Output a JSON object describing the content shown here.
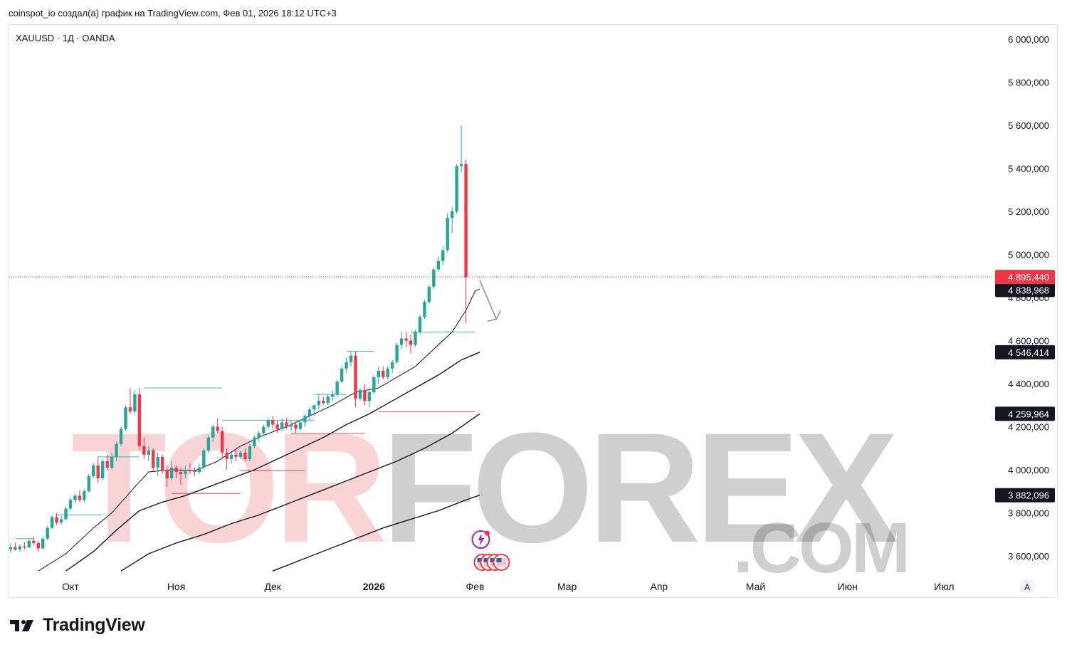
{
  "header": {
    "caption": "coinspot_io создал(а) график на TradingView.com, Фев 01, 2026 18:12 UTC+3"
  },
  "symbol_label": "XAUUSD · 1Д · OANDA",
  "footer": {
    "logo_icon": "tradingview-logo-icon",
    "brand": "TradingView"
  },
  "watermark": {
    "part_a": "TOR",
    "part_b": "FOREX",
    "domain": ".COM"
  },
  "auto_scale_button": "A",
  "colors": {
    "up": "#26a69a",
    "down": "#f23645",
    "ma": "#131722",
    "current_price_label": "#f23645",
    "ma_label": "#131722"
  },
  "chart_data": {
    "type": "candlestick",
    "symbol": "XAUUSD",
    "timeframe": "1Д",
    "source": "OANDA",
    "ylim": [
      3500,
      6100
    ],
    "y_ticks": [
      {
        "value": 6000,
        "label": "6 000,000"
      },
      {
        "value": 5800,
        "label": "5 800,000"
      },
      {
        "value": 5600,
        "label": "5 600,000"
      },
      {
        "value": 5400,
        "label": "5 400,000"
      },
      {
        "value": 5200,
        "label": "5 200,000"
      },
      {
        "value": 5000,
        "label": "5 000,000"
      },
      {
        "value": 4800,
        "label": "4 800,000"
      },
      {
        "value": 4600,
        "label": "4 600,000"
      },
      {
        "value": 4400,
        "label": "4 400,000"
      },
      {
        "value": 4200,
        "label": "4 200,000"
      },
      {
        "value": 4000,
        "label": "4 000,000"
      },
      {
        "value": 3800,
        "label": "3 800,000"
      },
      {
        "value": 3600,
        "label": "3 600,000"
      }
    ],
    "x_ticks": [
      {
        "index": 13,
        "label": "Окт",
        "bold": false
      },
      {
        "index": 36,
        "label": "Ноя",
        "bold": false
      },
      {
        "index": 57,
        "label": "Дек",
        "bold": false
      },
      {
        "index": 79,
        "label": "2026",
        "bold": true
      },
      {
        "index": 101,
        "label": "Фев",
        "bold": false
      },
      {
        "index": 121,
        "label": "Мар",
        "bold": false
      },
      {
        "index": 141,
        "label": "Апр",
        "bold": false
      },
      {
        "index": 162,
        "label": "Май",
        "bold": false
      },
      {
        "index": 182,
        "label": "Июн",
        "bold": false
      },
      {
        "index": 203,
        "label": "Июл",
        "bold": false
      }
    ],
    "candles": [
      {
        "o": 3630,
        "h": 3660,
        "l": 3615,
        "c": 3640
      },
      {
        "o": 3640,
        "h": 3660,
        "l": 3625,
        "c": 3630
      },
      {
        "o": 3630,
        "h": 3655,
        "l": 3620,
        "c": 3645
      },
      {
        "o": 3645,
        "h": 3665,
        "l": 3630,
        "c": 3640
      },
      {
        "o": 3640,
        "h": 3680,
        "l": 3635,
        "c": 3670
      },
      {
        "o": 3670,
        "h": 3690,
        "l": 3650,
        "c": 3660
      },
      {
        "o": 3660,
        "h": 3670,
        "l": 3620,
        "c": 3635
      },
      {
        "o": 3635,
        "h": 3690,
        "l": 3630,
        "c": 3680
      },
      {
        "o": 3680,
        "h": 3740,
        "l": 3675,
        "c": 3730
      },
      {
        "o": 3730,
        "h": 3790,
        "l": 3725,
        "c": 3780
      },
      {
        "o": 3780,
        "h": 3800,
        "l": 3745,
        "c": 3755
      },
      {
        "o": 3755,
        "h": 3785,
        "l": 3745,
        "c": 3770
      },
      {
        "o": 3770,
        "h": 3830,
        "l": 3765,
        "c": 3820
      },
      {
        "o": 3820,
        "h": 3870,
        "l": 3810,
        "c": 3860
      },
      {
        "o": 3860,
        "h": 3890,
        "l": 3845,
        "c": 3880
      },
      {
        "o": 3880,
        "h": 3905,
        "l": 3850,
        "c": 3860
      },
      {
        "o": 3860,
        "h": 3910,
        "l": 3850,
        "c": 3900
      },
      {
        "o": 3900,
        "h": 3980,
        "l": 3895,
        "c": 3970
      },
      {
        "o": 3970,
        "h": 4030,
        "l": 3960,
        "c": 4020
      },
      {
        "o": 4020,
        "h": 4060,
        "l": 3940,
        "c": 3960
      },
      {
        "o": 3960,
        "h": 4050,
        "l": 3950,
        "c": 4040
      },
      {
        "o": 4040,
        "h": 4070,
        "l": 4000,
        "c": 4010
      },
      {
        "o": 4010,
        "h": 4080,
        "l": 4000,
        "c": 4060
      },
      {
        "o": 4060,
        "h": 4130,
        "l": 4040,
        "c": 4120
      },
      {
        "o": 4120,
        "h": 4200,
        "l": 4110,
        "c": 4190
      },
      {
        "o": 4190,
        "h": 4300,
        "l": 4180,
        "c": 4290
      },
      {
        "o": 4290,
        "h": 4380,
        "l": 4260,
        "c": 4270
      },
      {
        "o": 4270,
        "h": 4370,
        "l": 4260,
        "c": 4350
      },
      {
        "o": 4350,
        "h": 4380,
        "l": 4090,
        "c": 4110
      },
      {
        "o": 4110,
        "h": 4150,
        "l": 4050,
        "c": 4070
      },
      {
        "o": 4070,
        "h": 4110,
        "l": 4040,
        "c": 4090
      },
      {
        "o": 4090,
        "h": 4100,
        "l": 3990,
        "c": 4010
      },
      {
        "o": 4010,
        "h": 4080,
        "l": 3970,
        "c": 4060
      },
      {
        "o": 4060,
        "h": 4070,
        "l": 3980,
        "c": 4000
      },
      {
        "o": 4000,
        "h": 4020,
        "l": 3920,
        "c": 3960
      },
      {
        "o": 3960,
        "h": 4040,
        "l": 3950,
        "c": 4010
      },
      {
        "o": 4010,
        "h": 4020,
        "l": 3960,
        "c": 3990
      },
      {
        "o": 3990,
        "h": 4010,
        "l": 3930,
        "c": 3980
      },
      {
        "o": 3980,
        "h": 4020,
        "l": 3960,
        "c": 4000
      },
      {
        "o": 4000,
        "h": 4030,
        "l": 3980,
        "c": 3995
      },
      {
        "o": 3995,
        "h": 4010,
        "l": 3970,
        "c": 3990
      },
      {
        "o": 3990,
        "h": 4030,
        "l": 3980,
        "c": 4010
      },
      {
        "o": 4010,
        "h": 4100,
        "l": 4000,
        "c": 4090
      },
      {
        "o": 4090,
        "h": 4160,
        "l": 4080,
        "c": 4150
      },
      {
        "o": 4150,
        "h": 4210,
        "l": 4130,
        "c": 4200
      },
      {
        "o": 4200,
        "h": 4240,
        "l": 4170,
        "c": 4180
      },
      {
        "o": 4180,
        "h": 4200,
        "l": 4050,
        "c": 4080
      },
      {
        "o": 4080,
        "h": 4100,
        "l": 4000,
        "c": 4050
      },
      {
        "o": 4050,
        "h": 4080,
        "l": 4030,
        "c": 4070
      },
      {
        "o": 4070,
        "h": 4100,
        "l": 4040,
        "c": 4060
      },
      {
        "o": 4060,
        "h": 4090,
        "l": 4050,
        "c": 4080
      },
      {
        "o": 4080,
        "h": 4100,
        "l": 4040,
        "c": 4050
      },
      {
        "o": 4050,
        "h": 4120,
        "l": 4040,
        "c": 4110
      },
      {
        "o": 4110,
        "h": 4160,
        "l": 4100,
        "c": 4150
      },
      {
        "o": 4150,
        "h": 4180,
        "l": 4130,
        "c": 4170
      },
      {
        "o": 4170,
        "h": 4210,
        "l": 4160,
        "c": 4200
      },
      {
        "o": 4200,
        "h": 4240,
        "l": 4190,
        "c": 4230
      },
      {
        "o": 4230,
        "h": 4250,
        "l": 4190,
        "c": 4210
      },
      {
        "o": 4210,
        "h": 4230,
        "l": 4170,
        "c": 4190
      },
      {
        "o": 4190,
        "h": 4240,
        "l": 4180,
        "c": 4220
      },
      {
        "o": 4220,
        "h": 4240,
        "l": 4190,
        "c": 4200
      },
      {
        "o": 4200,
        "h": 4230,
        "l": 4180,
        "c": 4210
      },
      {
        "o": 4210,
        "h": 4220,
        "l": 4170,
        "c": 4190
      },
      {
        "o": 4190,
        "h": 4230,
        "l": 4180,
        "c": 4220
      },
      {
        "o": 4220,
        "h": 4260,
        "l": 4200,
        "c": 4250
      },
      {
        "o": 4250,
        "h": 4290,
        "l": 4230,
        "c": 4280
      },
      {
        "o": 4280,
        "h": 4300,
        "l": 4250,
        "c": 4300
      },
      {
        "o": 4300,
        "h": 4350,
        "l": 4280,
        "c": 4320
      },
      {
        "o": 4320,
        "h": 4340,
        "l": 4300,
        "c": 4310
      },
      {
        "o": 4310,
        "h": 4350,
        "l": 4300,
        "c": 4340
      },
      {
        "o": 4340,
        "h": 4370,
        "l": 4320,
        "c": 4350
      },
      {
        "o": 4350,
        "h": 4420,
        "l": 4340,
        "c": 4410
      },
      {
        "o": 4410,
        "h": 4480,
        "l": 4400,
        "c": 4470
      },
      {
        "o": 4470,
        "h": 4520,
        "l": 4450,
        "c": 4500
      },
      {
        "o": 4500,
        "h": 4550,
        "l": 4480,
        "c": 4530
      },
      {
        "o": 4530,
        "h": 4550,
        "l": 4290,
        "c": 4330
      },
      {
        "o": 4330,
        "h": 4380,
        "l": 4320,
        "c": 4370
      },
      {
        "o": 4370,
        "h": 4400,
        "l": 4300,
        "c": 4320
      },
      {
        "o": 4320,
        "h": 4380,
        "l": 4290,
        "c": 4360
      },
      {
        "o": 4360,
        "h": 4440,
        "l": 4350,
        "c": 4430
      },
      {
        "o": 4430,
        "h": 4480,
        "l": 4400,
        "c": 4460
      },
      {
        "o": 4460,
        "h": 4480,
        "l": 4420,
        "c": 4430
      },
      {
        "o": 4430,
        "h": 4480,
        "l": 4420,
        "c": 4470
      },
      {
        "o": 4470,
        "h": 4510,
        "l": 4450,
        "c": 4500
      },
      {
        "o": 4500,
        "h": 4590,
        "l": 4490,
        "c": 4580
      },
      {
        "o": 4580,
        "h": 4640,
        "l": 4560,
        "c": 4610
      },
      {
        "o": 4610,
        "h": 4640,
        "l": 4570,
        "c": 4600
      },
      {
        "o": 4600,
        "h": 4630,
        "l": 4540,
        "c": 4580
      },
      {
        "o": 4580,
        "h": 4650,
        "l": 4570,
        "c": 4640
      },
      {
        "o": 4640,
        "h": 4720,
        "l": 4630,
        "c": 4710
      },
      {
        "o": 4710,
        "h": 4790,
        "l": 4700,
        "c": 4780
      },
      {
        "o": 4780,
        "h": 4860,
        "l": 4770,
        "c": 4850
      },
      {
        "o": 4850,
        "h": 4940,
        "l": 4840,
        "c": 4930
      },
      {
        "o": 4930,
        "h": 4990,
        "l": 4920,
        "c": 4970
      },
      {
        "o": 4970,
        "h": 5040,
        "l": 4950,
        "c": 5020
      },
      {
        "o": 5020,
        "h": 5190,
        "l": 5010,
        "c": 5170
      },
      {
        "o": 5170,
        "h": 5220,
        "l": 5100,
        "c": 5200
      },
      {
        "o": 5200,
        "h": 5420,
        "l": 5190,
        "c": 5410
      },
      {
        "o": 5410,
        "h": 5600,
        "l": 5380,
        "c": 5420
      },
      {
        "o": 5420,
        "h": 5440,
        "l": 4680,
        "c": 4895
      }
    ],
    "moving_averages": [
      {
        "name": "MA1",
        "values": [
          [
            6,
            3530
          ],
          [
            12,
            3610
          ],
          [
            18,
            3730
          ],
          [
            22,
            3800
          ],
          [
            27,
            3920
          ],
          [
            30,
            3990
          ],
          [
            35,
            4000
          ],
          [
            40,
            3995
          ],
          [
            45,
            4040
          ],
          [
            50,
            4110
          ],
          [
            55,
            4160
          ],
          [
            60,
            4200
          ],
          [
            65,
            4250
          ],
          [
            70,
            4300
          ],
          [
            75,
            4360
          ],
          [
            80,
            4380
          ],
          [
            84,
            4430
          ],
          [
            88,
            4480
          ],
          [
            92,
            4560
          ],
          [
            96,
            4640
          ],
          [
            99,
            4740
          ],
          [
            101,
            4830
          ],
          [
            102,
            4839
          ]
        ]
      },
      {
        "name": "MA2",
        "values": [
          [
            12,
            3530
          ],
          [
            18,
            3620
          ],
          [
            23,
            3720
          ],
          [
            28,
            3810
          ],
          [
            33,
            3850
          ],
          [
            38,
            3880
          ],
          [
            43,
            3920
          ],
          [
            48,
            3960
          ],
          [
            53,
            4000
          ],
          [
            58,
            4050
          ],
          [
            63,
            4100
          ],
          [
            68,
            4150
          ],
          [
            73,
            4210
          ],
          [
            78,
            4260
          ],
          [
            83,
            4320
          ],
          [
            88,
            4380
          ],
          [
            93,
            4440
          ],
          [
            98,
            4510
          ],
          [
            102,
            4546
          ]
        ]
      },
      {
        "name": "MA3",
        "values": [
          [
            24,
            3530
          ],
          [
            30,
            3610
          ],
          [
            36,
            3660
          ],
          [
            42,
            3700
          ],
          [
            48,
            3750
          ],
          [
            54,
            3790
          ],
          [
            60,
            3840
          ],
          [
            66,
            3890
          ],
          [
            72,
            3940
          ],
          [
            78,
            3990
          ],
          [
            84,
            4040
          ],
          [
            90,
            4100
          ],
          [
            96,
            4170
          ],
          [
            100,
            4230
          ],
          [
            102,
            4260
          ]
        ]
      },
      {
        "name": "MA4",
        "values": [
          [
            57,
            3530
          ],
          [
            63,
            3580
          ],
          [
            69,
            3630
          ],
          [
            75,
            3680
          ],
          [
            81,
            3730
          ],
          [
            87,
            3770
          ],
          [
            93,
            3810
          ],
          [
            99,
            3860
          ],
          [
            102,
            3882
          ]
        ]
      }
    ],
    "horizontal_levels": [
      {
        "from": 1,
        "to": 5,
        "value": 3680,
        "color": "#26a69a"
      },
      {
        "from": 10,
        "to": 20,
        "value": 3790,
        "color": "#26a69a"
      },
      {
        "from": 19,
        "to": 28,
        "value": 4060,
        "color": "#26a69a"
      },
      {
        "from": 29,
        "to": 46,
        "value": 4380,
        "color": "#26a69a"
      },
      {
        "from": 46,
        "to": 57,
        "value": 4230,
        "color": "#26a69a"
      },
      {
        "from": 57,
        "to": 66,
        "value": 4230,
        "color": "#26a69a"
      },
      {
        "from": 66,
        "to": 73,
        "value": 4350,
        "color": "#26a69a"
      },
      {
        "from": 73,
        "to": 79,
        "value": 4550,
        "color": "#26a69a"
      },
      {
        "from": 87,
        "to": 101,
        "value": 4640,
        "color": "#26a69a"
      },
      {
        "from": 35,
        "to": 50,
        "value": 3890,
        "color": "#f23645"
      },
      {
        "from": 50,
        "to": 64,
        "value": 3995,
        "color": "#f23645"
      },
      {
        "from": 61,
        "to": 77,
        "value": 4170,
        "color": "#f23645"
      },
      {
        "from": 80,
        "to": 101,
        "value": 4270,
        "color": "#f23645"
      }
    ],
    "current_price": {
      "value": 4895.44,
      "label": "4 895,440"
    },
    "ma_price_labels": [
      {
        "value": 4838.968,
        "label": "4 838,968",
        "y_value": 4835
      },
      {
        "value": 4546.414,
        "label": "4 546,414",
        "y_value": 4546
      },
      {
        "value": 4259.964,
        "label": "4 259,964",
        "y_value": 4260
      },
      {
        "value": 3882.096,
        "label": "3 882,096",
        "y_value": 3882
      }
    ],
    "arrow": {
      "from_index": 102,
      "from_value": 4880,
      "to_index": 105,
      "to_value": 4700
    },
    "events": {
      "lightning_index": 101,
      "flags_index": 102,
      "flag_count": 4
    }
  }
}
